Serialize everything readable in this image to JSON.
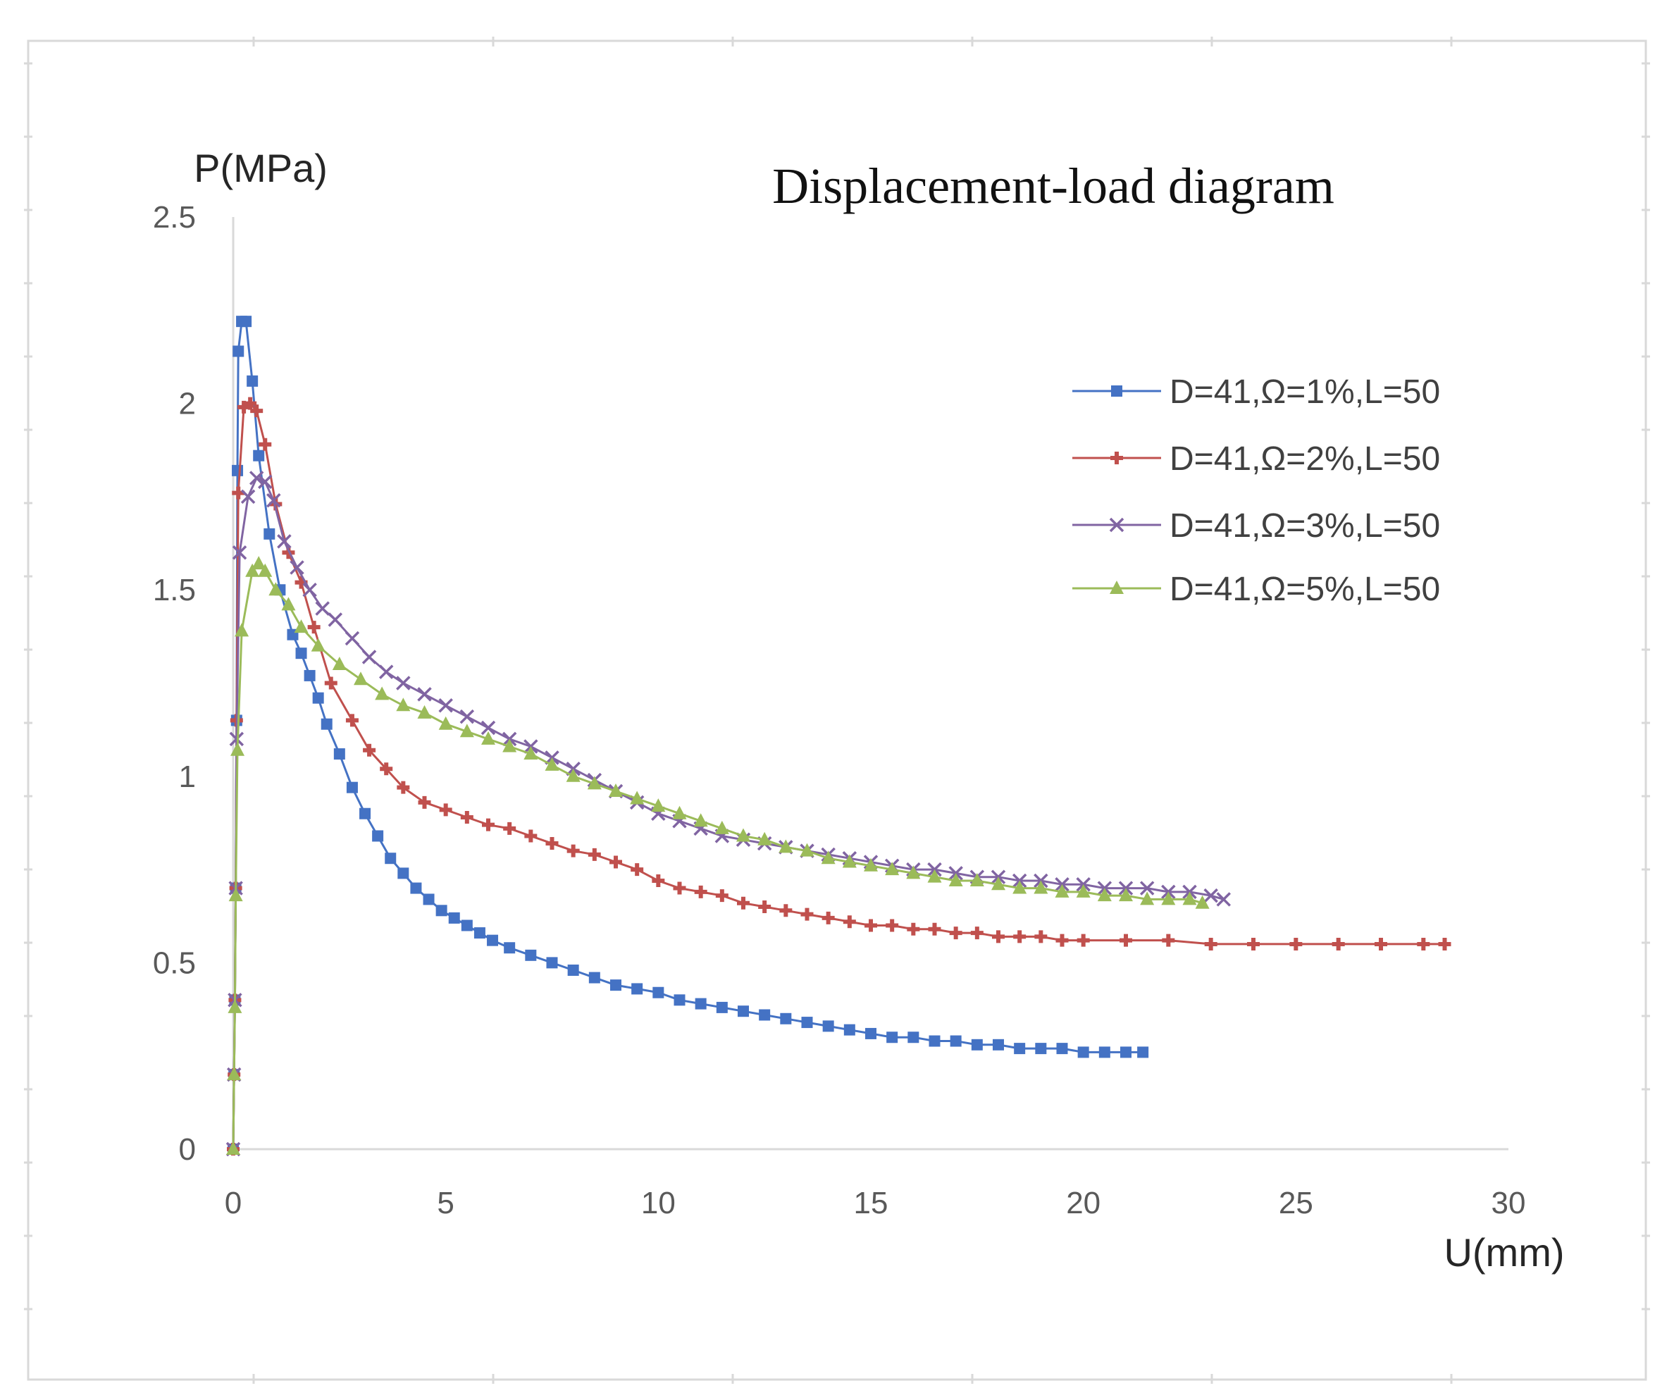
{
  "chart_data": {
    "type": "line",
    "title": "Displacement-load diagram",
    "xlabel": "U(mm)",
    "ylabel": "P(MPa)",
    "xlim": [
      0,
      30
    ],
    "ylim": [
      0,
      2.5
    ],
    "x_ticks": [
      0,
      5,
      10,
      15,
      20,
      25,
      30
    ],
    "y_ticks": [
      0,
      0.5,
      1,
      1.5,
      2,
      2.5
    ],
    "x_tick_labels": [
      "0",
      "5",
      "10",
      "15",
      "20",
      "25",
      "30"
    ],
    "y_tick_labels": [
      "0",
      "0.5",
      "1",
      "1.5",
      "2",
      "2.5"
    ],
    "grid": false,
    "legend_position": "right",
    "series": [
      {
        "name": "D=41,Ω=1%,L=50",
        "color": "#4472C4",
        "marker": "square",
        "points": [
          [
            0,
            0
          ],
          [
            0.02,
            0.2
          ],
          [
            0.04,
            0.4
          ],
          [
            0.06,
            0.7
          ],
          [
            0.08,
            1.15
          ],
          [
            0.1,
            1.82
          ],
          [
            0.12,
            2.14
          ],
          [
            0.2,
            2.22
          ],
          [
            0.3,
            2.22
          ],
          [
            0.45,
            2.06
          ],
          [
            0.6,
            1.86
          ],
          [
            0.85,
            1.65
          ],
          [
            1.1,
            1.5
          ],
          [
            1.4,
            1.38
          ],
          [
            1.6,
            1.33
          ],
          [
            1.8,
            1.27
          ],
          [
            2.0,
            1.21
          ],
          [
            2.2,
            1.14
          ],
          [
            2.5,
            1.06
          ],
          [
            2.8,
            0.97
          ],
          [
            3.1,
            0.9
          ],
          [
            3.4,
            0.84
          ],
          [
            3.7,
            0.78
          ],
          [
            4.0,
            0.74
          ],
          [
            4.3,
            0.7
          ],
          [
            4.6,
            0.67
          ],
          [
            4.9,
            0.64
          ],
          [
            5.2,
            0.62
          ],
          [
            5.5,
            0.6
          ],
          [
            5.8,
            0.58
          ],
          [
            6.1,
            0.56
          ],
          [
            6.5,
            0.54
          ],
          [
            7.0,
            0.52
          ],
          [
            7.5,
            0.5
          ],
          [
            8.0,
            0.48
          ],
          [
            8.5,
            0.46
          ],
          [
            9.0,
            0.44
          ],
          [
            9.5,
            0.43
          ],
          [
            10.0,
            0.42
          ],
          [
            10.5,
            0.4
          ],
          [
            11.0,
            0.39
          ],
          [
            11.5,
            0.38
          ],
          [
            12.0,
            0.37
          ],
          [
            12.5,
            0.36
          ],
          [
            13.0,
            0.35
          ],
          [
            13.5,
            0.34
          ],
          [
            14.0,
            0.33
          ],
          [
            14.5,
            0.32
          ],
          [
            15.0,
            0.31
          ],
          [
            15.5,
            0.3
          ],
          [
            16.0,
            0.3
          ],
          [
            16.5,
            0.29
          ],
          [
            17.0,
            0.29
          ],
          [
            17.5,
            0.28
          ],
          [
            18.0,
            0.28
          ],
          [
            18.5,
            0.27
          ],
          [
            19.0,
            0.27
          ],
          [
            19.5,
            0.27
          ],
          [
            20.0,
            0.26
          ],
          [
            20.5,
            0.26
          ],
          [
            21.0,
            0.26
          ],
          [
            21.4,
            0.26
          ]
        ]
      },
      {
        "name": "D=41,Ω=2%,L=50",
        "color": "#C0504D",
        "marker": "star",
        "points": [
          [
            0,
            0
          ],
          [
            0.02,
            0.2
          ],
          [
            0.04,
            0.4
          ],
          [
            0.06,
            0.7
          ],
          [
            0.08,
            1.15
          ],
          [
            0.12,
            1.76
          ],
          [
            0.25,
            1.99
          ],
          [
            0.4,
            2.0
          ],
          [
            0.55,
            1.98
          ],
          [
            0.75,
            1.89
          ],
          [
            1.0,
            1.73
          ],
          [
            1.3,
            1.6
          ],
          [
            1.6,
            1.52
          ],
          [
            1.9,
            1.4
          ],
          [
            2.3,
            1.25
          ],
          [
            2.8,
            1.15
          ],
          [
            3.2,
            1.07
          ],
          [
            3.6,
            1.02
          ],
          [
            4.0,
            0.97
          ],
          [
            4.5,
            0.93
          ],
          [
            5.0,
            0.91
          ],
          [
            5.5,
            0.89
          ],
          [
            6.0,
            0.87
          ],
          [
            6.5,
            0.86
          ],
          [
            7.0,
            0.84
          ],
          [
            7.5,
            0.82
          ],
          [
            8.0,
            0.8
          ],
          [
            8.5,
            0.79
          ],
          [
            9.0,
            0.77
          ],
          [
            9.5,
            0.75
          ],
          [
            10.0,
            0.72
          ],
          [
            10.5,
            0.7
          ],
          [
            11.0,
            0.69
          ],
          [
            11.5,
            0.68
          ],
          [
            12.0,
            0.66
          ],
          [
            12.5,
            0.65
          ],
          [
            13.0,
            0.64
          ],
          [
            13.5,
            0.63
          ],
          [
            14.0,
            0.62
          ],
          [
            14.5,
            0.61
          ],
          [
            15.0,
            0.6
          ],
          [
            15.5,
            0.6
          ],
          [
            16.0,
            0.59
          ],
          [
            16.5,
            0.59
          ],
          [
            17.0,
            0.58
          ],
          [
            17.5,
            0.58
          ],
          [
            18.0,
            0.57
          ],
          [
            18.5,
            0.57
          ],
          [
            19.0,
            0.57
          ],
          [
            19.5,
            0.56
          ],
          [
            20.0,
            0.56
          ],
          [
            21.0,
            0.56
          ],
          [
            22.0,
            0.56
          ],
          [
            23.0,
            0.55
          ],
          [
            24.0,
            0.55
          ],
          [
            25.0,
            0.55
          ],
          [
            26.0,
            0.55
          ],
          [
            27.0,
            0.55
          ],
          [
            28.0,
            0.55
          ],
          [
            28.5,
            0.55
          ]
        ]
      },
      {
        "name": "D=41,Ω=3%,L=50",
        "color": "#8064A2",
        "marker": "x",
        "points": [
          [
            0,
            0
          ],
          [
            0.02,
            0.2
          ],
          [
            0.04,
            0.4
          ],
          [
            0.06,
            0.7
          ],
          [
            0.08,
            1.1
          ],
          [
            0.15,
            1.6
          ],
          [
            0.35,
            1.75
          ],
          [
            0.55,
            1.8
          ],
          [
            0.75,
            1.79
          ],
          [
            0.95,
            1.74
          ],
          [
            1.2,
            1.63
          ],
          [
            1.5,
            1.56
          ],
          [
            1.8,
            1.5
          ],
          [
            2.1,
            1.45
          ],
          [
            2.4,
            1.42
          ],
          [
            2.8,
            1.37
          ],
          [
            3.2,
            1.32
          ],
          [
            3.6,
            1.28
          ],
          [
            4.0,
            1.25
          ],
          [
            4.5,
            1.22
          ],
          [
            5.0,
            1.19
          ],
          [
            5.5,
            1.16
          ],
          [
            6.0,
            1.13
          ],
          [
            6.5,
            1.1
          ],
          [
            7.0,
            1.08
          ],
          [
            7.5,
            1.05
          ],
          [
            8.0,
            1.02
          ],
          [
            8.5,
            0.99
          ],
          [
            9.0,
            0.96
          ],
          [
            9.5,
            0.93
          ],
          [
            10.0,
            0.9
          ],
          [
            10.5,
            0.88
          ],
          [
            11.0,
            0.86
          ],
          [
            11.5,
            0.84
          ],
          [
            12.0,
            0.83
          ],
          [
            12.5,
            0.82
          ],
          [
            13.0,
            0.81
          ],
          [
            13.5,
            0.8
          ],
          [
            14.0,
            0.79
          ],
          [
            14.5,
            0.78
          ],
          [
            15.0,
            0.77
          ],
          [
            15.5,
            0.76
          ],
          [
            16.0,
            0.75
          ],
          [
            16.5,
            0.75
          ],
          [
            17.0,
            0.74
          ],
          [
            17.5,
            0.73
          ],
          [
            18.0,
            0.73
          ],
          [
            18.5,
            0.72
          ],
          [
            19.0,
            0.72
          ],
          [
            19.5,
            0.71
          ],
          [
            20.0,
            0.71
          ],
          [
            20.5,
            0.7
          ],
          [
            21.0,
            0.7
          ],
          [
            21.5,
            0.7
          ],
          [
            22.0,
            0.69
          ],
          [
            22.5,
            0.69
          ],
          [
            23.0,
            0.68
          ],
          [
            23.3,
            0.67
          ]
        ]
      },
      {
        "name": "D=41,Ω=5%,L=50",
        "color": "#9BBB59",
        "marker": "triangle",
        "points": [
          [
            0,
            0
          ],
          [
            0.02,
            0.2
          ],
          [
            0.04,
            0.38
          ],
          [
            0.06,
            0.68
          ],
          [
            0.1,
            1.07
          ],
          [
            0.2,
            1.39
          ],
          [
            0.45,
            1.55
          ],
          [
            0.6,
            1.57
          ],
          [
            0.75,
            1.55
          ],
          [
            1.0,
            1.5
          ],
          [
            1.3,
            1.46
          ],
          [
            1.6,
            1.4
          ],
          [
            2.0,
            1.35
          ],
          [
            2.5,
            1.3
          ],
          [
            3.0,
            1.26
          ],
          [
            3.5,
            1.22
          ],
          [
            4.0,
            1.19
          ],
          [
            4.5,
            1.17
          ],
          [
            5.0,
            1.14
          ],
          [
            5.5,
            1.12
          ],
          [
            6.0,
            1.1
          ],
          [
            6.5,
            1.08
          ],
          [
            7.0,
            1.06
          ],
          [
            7.5,
            1.03
          ],
          [
            8.0,
            1.0
          ],
          [
            8.5,
            0.98
          ],
          [
            9.0,
            0.96
          ],
          [
            9.5,
            0.94
          ],
          [
            10.0,
            0.92
          ],
          [
            10.5,
            0.9
          ],
          [
            11.0,
            0.88
          ],
          [
            11.5,
            0.86
          ],
          [
            12.0,
            0.84
          ],
          [
            12.5,
            0.83
          ],
          [
            13.0,
            0.81
          ],
          [
            13.5,
            0.8
          ],
          [
            14.0,
            0.78
          ],
          [
            14.5,
            0.77
          ],
          [
            15.0,
            0.76
          ],
          [
            15.5,
            0.75
          ],
          [
            16.0,
            0.74
          ],
          [
            16.5,
            0.73
          ],
          [
            17.0,
            0.72
          ],
          [
            17.5,
            0.72
          ],
          [
            18.0,
            0.71
          ],
          [
            18.5,
            0.7
          ],
          [
            19.0,
            0.7
          ],
          [
            19.5,
            0.69
          ],
          [
            20.0,
            0.69
          ],
          [
            20.5,
            0.68
          ],
          [
            21.0,
            0.68
          ],
          [
            21.5,
            0.67
          ],
          [
            22.0,
            0.67
          ],
          [
            22.5,
            0.67
          ],
          [
            22.8,
            0.66
          ]
        ]
      }
    ]
  }
}
